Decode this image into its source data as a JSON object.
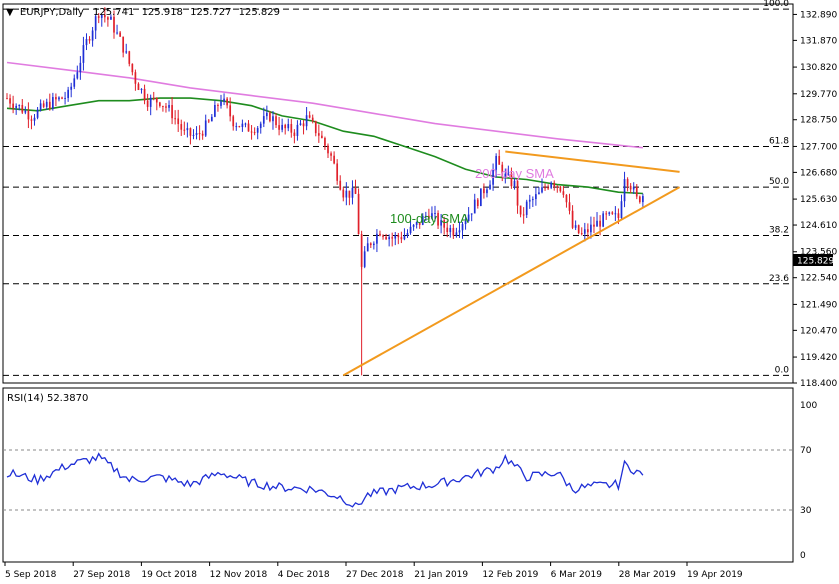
{
  "header": {
    "symbol": "EURJPY,Daily",
    "open": "125.741",
    "high": "125.918",
    "low": "125.727",
    "close": "125.829"
  },
  "price_tag": "125.829",
  "colors": {
    "candle_up": "#1f2fd6",
    "candle_down": "#e0202a",
    "sma100": "#1e8c1e",
    "sma200": "#e07ce0",
    "trendline": "#f29a1e",
    "rsi": "#1f2fd6",
    "fib": "#000000"
  },
  "annotations": {
    "sma200_label": "200-day SMA",
    "sma100_label": "100-day SMA"
  },
  "rsi_panel": {
    "label": "RSI(14) 52.3870",
    "levels": [
      "70",
      "30"
    ],
    "ticks": [
      "100",
      "70",
      "30",
      "0"
    ]
  },
  "chart_data": {
    "type": "candlestick",
    "y_ticks": [
      "132.890",
      "131.870",
      "130.820",
      "129.770",
      "128.750",
      "127.700",
      "126.680",
      "125.630",
      "124.610",
      "123.560",
      "122.540",
      "121.490",
      "120.470",
      "119.420",
      "118.400"
    ],
    "ylim": [
      118.4,
      133.3
    ],
    "x_ticks": [
      "5 Sep 2018",
      "27 Sep 2018",
      "19 Oct 2018",
      "12 Nov 2018",
      "4 Dec 2018",
      "27 Dec 2018",
      "21 Jan 2019",
      "12 Feb 2019",
      "6 Mar 2019",
      "28 Mar 2019",
      "19 Apr 2019"
    ],
    "fib_levels": [
      {
        "label": "100.0",
        "price": 133.1
      },
      {
        "label": "61.8",
        "price": 127.7
      },
      {
        "label": "50.0",
        "price": 126.1
      },
      {
        "label": "38.2",
        "price": 124.2
      },
      {
        "label": "23.6",
        "price": 122.3
      },
      {
        "label": "0.0",
        "price": 118.7
      }
    ],
    "close_path": [
      [
        0,
        129.6
      ],
      [
        8,
        128.9
      ],
      [
        14,
        129.4
      ],
      [
        20,
        129.7
      ],
      [
        26,
        131.8
      ],
      [
        30,
        133.0
      ],
      [
        34,
        132.6
      ],
      [
        38,
        131.6
      ],
      [
        42,
        130.3
      ],
      [
        46,
        129.5
      ],
      [
        50,
        129.5
      ],
      [
        54,
        129.0
      ],
      [
        58,
        128.2
      ],
      [
        62,
        128.1
      ],
      [
        66,
        128.6
      ],
      [
        70,
        129.6
      ],
      [
        74,
        128.7
      ],
      [
        78,
        128.4
      ],
      [
        82,
        128.5
      ],
      [
        86,
        128.9
      ],
      [
        90,
        128.4
      ],
      [
        94,
        128.3
      ],
      [
        98,
        128.8
      ],
      [
        102,
        128.2
      ],
      [
        106,
        127.3
      ],
      [
        110,
        125.9
      ],
      [
        114,
        125.8
      ],
      [
        116,
        122.9
      ],
      [
        118,
        123.8
      ],
      [
        122,
        124.4
      ],
      [
        126,
        124.1
      ],
      [
        130,
        124.2
      ],
      [
        134,
        124.6
      ],
      [
        138,
        125.1
      ],
      [
        142,
        124.6
      ],
      [
        146,
        124.4
      ],
      [
        150,
        124.9
      ],
      [
        154,
        125.6
      ],
      [
        158,
        126.4
      ],
      [
        160,
        127.1
      ],
      [
        163,
        126.5
      ],
      [
        166,
        126.2
      ],
      [
        168,
        124.8
      ],
      [
        170,
        125.4
      ],
      [
        174,
        125.8
      ],
      [
        178,
        126.4
      ],
      [
        182,
        126.0
      ],
      [
        185,
        124.5
      ],
      [
        188,
        124.2
      ],
      [
        192,
        124.6
      ],
      [
        196,
        124.9
      ],
      [
        200,
        124.9
      ],
      [
        202,
        126.6
      ],
      [
        204,
        126.2
      ],
      [
        206,
        125.6
      ],
      [
        208,
        125.8
      ]
    ],
    "sma100": [
      [
        0,
        129.2
      ],
      [
        10,
        129.1
      ],
      [
        20,
        129.3
      ],
      [
        30,
        129.5
      ],
      [
        40,
        129.5
      ],
      [
        50,
        129.6
      ],
      [
        60,
        129.6
      ],
      [
        70,
        129.5
      ],
      [
        80,
        129.3
      ],
      [
        90,
        128.9
      ],
      [
        100,
        128.7
      ],
      [
        110,
        128.3
      ],
      [
        120,
        128.1
      ],
      [
        130,
        127.7
      ],
      [
        140,
        127.3
      ],
      [
        150,
        126.8
      ],
      [
        160,
        126.5
      ],
      [
        170,
        126.4
      ],
      [
        180,
        126.2
      ],
      [
        190,
        126.1
      ],
      [
        200,
        125.9
      ],
      [
        208,
        125.85
      ]
    ],
    "sma200": [
      [
        0,
        131.0
      ],
      [
        20,
        130.7
      ],
      [
        40,
        130.4
      ],
      [
        60,
        130.0
      ],
      [
        80,
        129.7
      ],
      [
        100,
        129.4
      ],
      [
        120,
        129.0
      ],
      [
        140,
        128.6
      ],
      [
        160,
        128.3
      ],
      [
        180,
        128.0
      ],
      [
        200,
        127.75
      ],
      [
        208,
        127.65
      ]
    ],
    "x_max": 210,
    "trendlines": [
      {
        "from": [
          110,
          118.7
        ],
        "to": [
          220,
          126.1
        ]
      },
      {
        "from": [
          163,
          127.5
        ],
        "to": [
          220,
          126.7
        ]
      }
    ],
    "rsi_values": [
      [
        0,
        55
      ],
      [
        10,
        50
      ],
      [
        20,
        60
      ],
      [
        30,
        65
      ],
      [
        40,
        50
      ],
      [
        50,
        52
      ],
      [
        60,
        47
      ],
      [
        70,
        55
      ],
      [
        80,
        48
      ],
      [
        90,
        45
      ],
      [
        100,
        44
      ],
      [
        110,
        38
      ],
      [
        114,
        32
      ],
      [
        118,
        40
      ],
      [
        130,
        45
      ],
      [
        140,
        47
      ],
      [
        150,
        52
      ],
      [
        160,
        58
      ],
      [
        163,
        65
      ],
      [
        170,
        52
      ],
      [
        180,
        55
      ],
      [
        185,
        44
      ],
      [
        192,
        46
      ],
      [
        200,
        47
      ],
      [
        202,
        60
      ],
      [
        206,
        56
      ],
      [
        208,
        52.4
      ]
    ],
    "rsi_ylim": [
      0,
      100
    ]
  }
}
